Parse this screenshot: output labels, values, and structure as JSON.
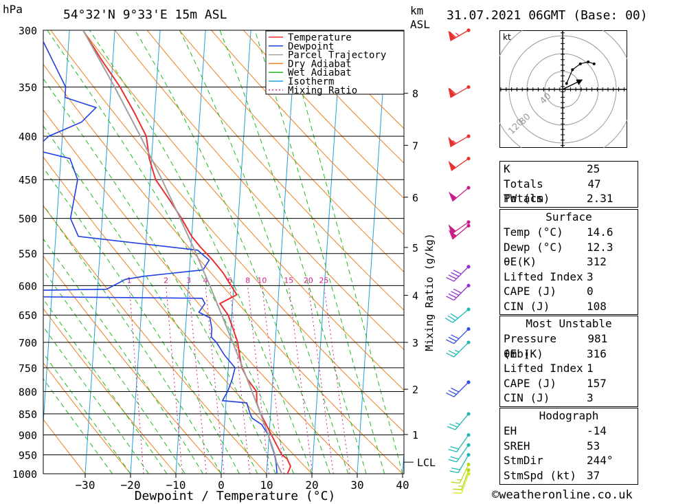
{
  "header": {
    "location": "54°32'N  9°33'E  15m  ASL",
    "datetime": "31.07.2021  06GMT  (Base: 00)",
    "y_unit": "hPa",
    "km_label": "km",
    "asl_label": "ASL"
  },
  "colors": {
    "temperature": "#e8302e",
    "dewpoint": "#1f3fe0",
    "parcel": "#a0a0a0",
    "dry_adiabat": "#f07f1a",
    "wet_adiabat": "#20b820",
    "isotherm": "#1fa0e0",
    "mixing_ratio": "#d0208a"
  },
  "chart_data": {
    "type": "line",
    "chart_kind": "skew-T log-P",
    "xlabel": "Dewpoint / Temperature (°C)",
    "ylabel": "hPa",
    "xlim": [
      -40,
      40
    ],
    "ylim": [
      1000,
      300
    ],
    "y_scale": "log",
    "x_ticks": [
      -30,
      -20,
      -10,
      0,
      10,
      20,
      30,
      40
    ],
    "y_ticks": [
      300,
      350,
      400,
      450,
      500,
      550,
      600,
      650,
      700,
      750,
      800,
      850,
      900,
      950,
      1000
    ],
    "km_ticks": [
      {
        "label": "8",
        "p": 356
      },
      {
        "label": "7",
        "p": 410
      },
      {
        "label": "6",
        "p": 472
      },
      {
        "label": "5",
        "p": 541
      },
      {
        "label": "4",
        "p": 616
      },
      {
        "label": "3",
        "p": 700
      },
      {
        "label": "2",
        "p": 795
      },
      {
        "label": "1",
        "p": 899
      }
    ],
    "lcl_label": "LCL",
    "lcl_p": 969,
    "mixing_ratio_axis_label": "Mixing Ratio (g/kg)",
    "mixing_ratio_labels": [
      "1",
      "2",
      "3",
      "4",
      "6",
      "8",
      "10",
      "15",
      "20",
      "25"
    ],
    "legend": [
      "Temperature",
      "Dewpoint",
      "Parcel Trajectory",
      "Dry Adiabat",
      "Wet Adiabat",
      "Isotherm",
      "Mixing Ratio"
    ],
    "legend_position": "top-right",
    "series": [
      {
        "name": "Temperature",
        "points": [
          [
            1000,
            14.6
          ],
          [
            980,
            15.2
          ],
          [
            960,
            14.3
          ],
          [
            950,
            13.1
          ],
          [
            925,
            11.8
          ],
          [
            900,
            10.5
          ],
          [
            875,
            9.2
          ],
          [
            850,
            7.8
          ],
          [
            825,
            6.8
          ],
          [
            800,
            6.6
          ],
          [
            775,
            4.5
          ],
          [
            750,
            3.0
          ],
          [
            725,
            2.3
          ],
          [
            700,
            1.7
          ],
          [
            675,
            0.5
          ],
          [
            650,
            -0.8
          ],
          [
            630,
            -2.8
          ],
          [
            615,
            0.8
          ],
          [
            600,
            -0.6
          ],
          [
            580,
            -2.5
          ],
          [
            560,
            -5.0
          ],
          [
            540,
            -8.0
          ],
          [
            525,
            -10.0
          ],
          [
            500,
            -12.5
          ],
          [
            475,
            -15.5
          ],
          [
            450,
            -18.8
          ],
          [
            425,
            -20.5
          ],
          [
            400,
            -21.5
          ],
          [
            375,
            -24.5
          ],
          [
            350,
            -28.0
          ],
          [
            325,
            -32.5
          ],
          [
            300,
            -37.0
          ]
        ]
      },
      {
        "name": "Dewpoint",
        "points": [
          [
            1000,
            12.3
          ],
          [
            975,
            12.0
          ],
          [
            950,
            11.5
          ],
          [
            925,
            10.6
          ],
          [
            900,
            9.8
          ],
          [
            875,
            8.2
          ],
          [
            860,
            6.0
          ],
          [
            850,
            5.5
          ],
          [
            825,
            4.6
          ],
          [
            820,
            -0.8
          ],
          [
            800,
            0.2
          ],
          [
            775,
            1.0
          ],
          [
            750,
            1.5
          ],
          [
            725,
            -1.0
          ],
          [
            700,
            -3.0
          ],
          [
            690,
            -4.2
          ],
          [
            675,
            -4.2
          ],
          [
            655,
            -4.8
          ],
          [
            645,
            -7.3
          ],
          [
            630,
            -6.1
          ],
          [
            621,
            -6.8
          ],
          [
            618,
            -51
          ],
          [
            614,
            -44
          ],
          [
            611,
            -52
          ],
          [
            608,
            -46
          ],
          [
            606,
            -28
          ],
          [
            590,
            -24
          ],
          [
            585,
            -20
          ],
          [
            575,
            -7.0
          ],
          [
            560,
            -5.8
          ],
          [
            545,
            -8.5
          ],
          [
            525,
            -35
          ],
          [
            500,
            -37
          ],
          [
            450,
            -36
          ],
          [
            425,
            -38
          ],
          [
            415,
            -46
          ],
          [
            400,
            -43
          ],
          [
            385,
            -36
          ],
          [
            370,
            -33
          ],
          [
            360,
            -40
          ],
          [
            350,
            -40
          ],
          [
            300,
            -47
          ]
        ]
      },
      {
        "name": "Parcel Trajectory",
        "points": [
          [
            1000,
            13.4
          ],
          [
            969,
            12.0
          ],
          [
            950,
            11.6
          ],
          [
            900,
            9.8
          ],
          [
            850,
            7.8
          ],
          [
            800,
            5.6
          ],
          [
            750,
            3.2
          ],
          [
            700,
            0.6
          ],
          [
            650,
            -2.2
          ],
          [
            600,
            -5.3
          ],
          [
            550,
            -8.8
          ],
          [
            500,
            -12.8
          ],
          [
            450,
            -17.4
          ],
          [
            400,
            -22.8
          ],
          [
            350,
            -29.2
          ],
          [
            300,
            -37.0
          ]
        ]
      }
    ],
    "winds": [
      {
        "p": 300,
        "dir": 240,
        "kt": 65,
        "color": "#e8302e"
      },
      {
        "p": 350,
        "dir": 240,
        "kt": 60,
        "color": "#e8302e"
      },
      {
        "p": 400,
        "dir": 240,
        "kt": 55,
        "color": "#e8302e"
      },
      {
        "p": 425,
        "dir": 235,
        "kt": 50,
        "color": "#e8302e"
      },
      {
        "p": 460,
        "dir": 230,
        "kt": 50,
        "color": "#c8208a"
      },
      {
        "p": 505,
        "dir": 235,
        "kt": 50,
        "color": "#c8208a"
      },
      {
        "p": 510,
        "dir": 230,
        "kt": 50,
        "color": "#c8208a"
      },
      {
        "p": 570,
        "dir": 225,
        "kt": 40,
        "color": "#9030c8"
      },
      {
        "p": 600,
        "dir": 225,
        "kt": 40,
        "color": "#9030c8"
      },
      {
        "p": 640,
        "dir": 230,
        "kt": 30,
        "color": "#20b8b8"
      },
      {
        "p": 675,
        "dir": 225,
        "kt": 30,
        "color": "#3050e0"
      },
      {
        "p": 700,
        "dir": 225,
        "kt": 25,
        "color": "#20b8b8"
      },
      {
        "p": 780,
        "dir": 225,
        "kt": 30,
        "color": "#3050e0"
      },
      {
        "p": 850,
        "dir": 220,
        "kt": 25,
        "color": "#20b8b8"
      },
      {
        "p": 900,
        "dir": 215,
        "kt": 20,
        "color": "#20b8b8"
      },
      {
        "p": 925,
        "dir": 215,
        "kt": 20,
        "color": "#20b8b8"
      },
      {
        "p": 950,
        "dir": 210,
        "kt": 20,
        "color": "#20b8b8"
      },
      {
        "p": 975,
        "dir": 205,
        "kt": 15,
        "color": "#b8d820"
      },
      {
        "p": 990,
        "dir": 200,
        "kt": 15,
        "color": "#b8d820"
      },
      {
        "p": 1000,
        "dir": 200,
        "kt": 15,
        "color": "#d8e820"
      }
    ],
    "hodograph": {
      "unit_label": "kt",
      "ring_labels": [
        "40",
        "80",
        "120"
      ],
      "trace_kt": [
        [
          2,
          3
        ],
        [
          5,
          10
        ],
        [
          9,
          13
        ],
        [
          13,
          14
        ],
        [
          16,
          13
        ]
      ],
      "storm_motion": {
        "dir": 244,
        "kt": 37
      }
    }
  },
  "indices": {
    "general": [
      {
        "label": "K",
        "value": "25"
      },
      {
        "label": "Totals Totals",
        "value": "47"
      },
      {
        "label": "PW (cm)",
        "value": "2.31"
      }
    ],
    "surface": {
      "title": "Surface",
      "rows": [
        {
          "label": "Temp (°C)",
          "value": "14.6"
        },
        {
          "label": "Dewp (°C)",
          "value": "12.3"
        },
        {
          "label": "θE(K)",
          "value": "312"
        },
        {
          "label": "Lifted Index",
          "value": "3"
        },
        {
          "label": "CAPE (J)",
          "value": "0"
        },
        {
          "label": "CIN (J)",
          "value": "108"
        }
      ]
    },
    "most_unstable": {
      "title": "Most Unstable",
      "rows": [
        {
          "label": "Pressure (mb)",
          "value": "981"
        },
        {
          "label": "θE (K)",
          "value": "316"
        },
        {
          "label": "Lifted Index",
          "value": "1"
        },
        {
          "label": "CAPE (J)",
          "value": "157"
        },
        {
          "label": "CIN (J)",
          "value": "3"
        }
      ]
    },
    "hodograph": {
      "title": "Hodograph",
      "rows": [
        {
          "label": "EH",
          "value": "-14"
        },
        {
          "label": "SREH",
          "value": "53"
        },
        {
          "label": "StmDir",
          "value": "244°"
        },
        {
          "label": "StmSpd (kt)",
          "value": "37"
        }
      ]
    }
  },
  "footer": {
    "copyright": "©weatheronline.co.uk"
  }
}
